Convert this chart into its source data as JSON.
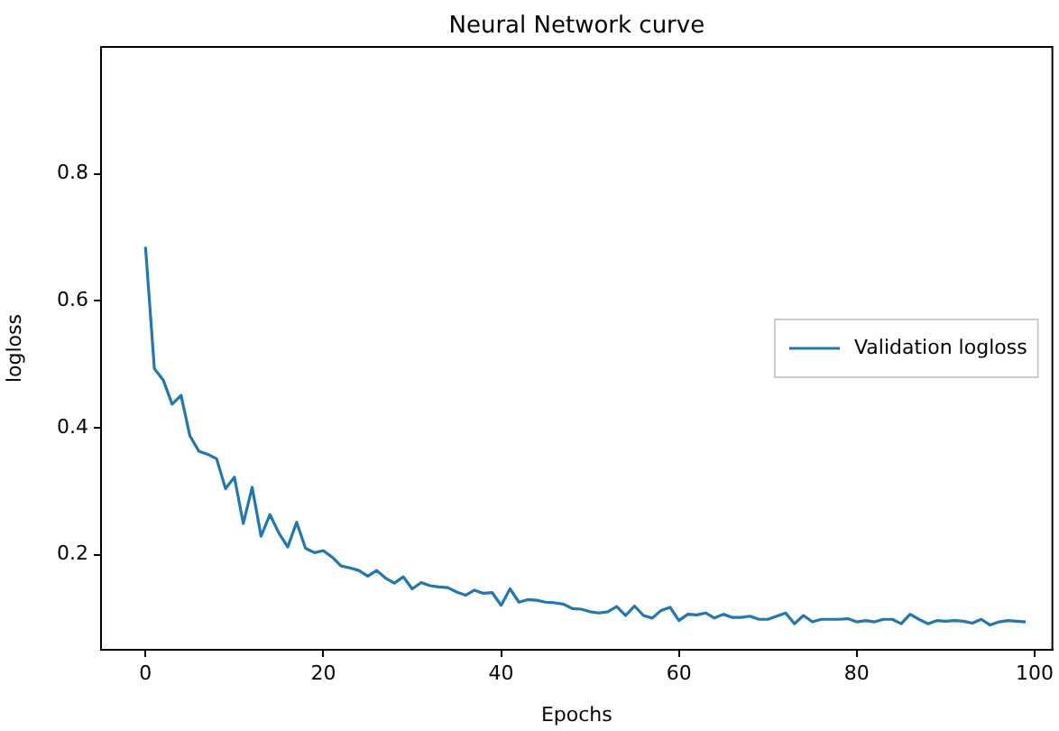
{
  "chart_data": {
    "type": "line",
    "title": "Neural Network curve",
    "xlabel": "Epochs",
    "ylabel": "logloss",
    "x": [
      0,
      1,
      2,
      3,
      4,
      5,
      6,
      7,
      8,
      9,
      10,
      11,
      12,
      13,
      14,
      15,
      16,
      17,
      18,
      19,
      20,
      21,
      22,
      23,
      24,
      25,
      26,
      27,
      28,
      29,
      30,
      31,
      32,
      33,
      34,
      35,
      36,
      37,
      38,
      39,
      40,
      41,
      42,
      43,
      44,
      45,
      46,
      47,
      48,
      49,
      50,
      51,
      52,
      53,
      54,
      55,
      56,
      57,
      58,
      59,
      60,
      61,
      62,
      63,
      64,
      65,
      66,
      67,
      68,
      69,
      70,
      71,
      72,
      73,
      74,
      75,
      76,
      77,
      78,
      79,
      80,
      81,
      82,
      83,
      84,
      85,
      86,
      87,
      88,
      89,
      90,
      91,
      92,
      93,
      94,
      95,
      96,
      97,
      98,
      99
    ],
    "series": [
      {
        "name": "Validation logloss",
        "color": "#1f77b4",
        "values": [
          0.685,
          0.493,
          0.475,
          0.437,
          0.451,
          0.387,
          0.363,
          0.358,
          0.351,
          0.304,
          0.322,
          0.249,
          0.306,
          0.229,
          0.263,
          0.234,
          0.212,
          0.251,
          0.21,
          0.203,
          0.206,
          0.196,
          0.182,
          0.179,
          0.175,
          0.166,
          0.175,
          0.163,
          0.155,
          0.165,
          0.146,
          0.156,
          0.151,
          0.149,
          0.148,
          0.141,
          0.136,
          0.144,
          0.139,
          0.14,
          0.12,
          0.146,
          0.125,
          0.129,
          0.128,
          0.125,
          0.124,
          0.122,
          0.115,
          0.114,
          0.11,
          0.108,
          0.11,
          0.118,
          0.104,
          0.119,
          0.104,
          0.1,
          0.112,
          0.117,
          0.096,
          0.106,
          0.105,
          0.108,
          0.1,
          0.106,
          0.101,
          0.101,
          0.103,
          0.098,
          0.098,
          0.103,
          0.108,
          0.091,
          0.104,
          0.094,
          0.098,
          0.098,
          0.098,
          0.099,
          0.094,
          0.096,
          0.094,
          0.098,
          0.098,
          0.091,
          0.106,
          0.098,
          0.091,
          0.096,
          0.095,
          0.096,
          0.095,
          0.092,
          0.098,
          0.089,
          0.094,
          0.096,
          0.095,
          0.094
        ]
      }
    ],
    "xlim": [
      -5,
      102
    ],
    "xticks": [
      0,
      20,
      40,
      60,
      80,
      100
    ],
    "ylim": [
      0.05,
      1.0
    ],
    "yticks": [
      0.2,
      0.4,
      0.6,
      0.8
    ],
    "grid": false,
    "legend": "center right",
    "marker": "none",
    "line_style": "solid"
  }
}
